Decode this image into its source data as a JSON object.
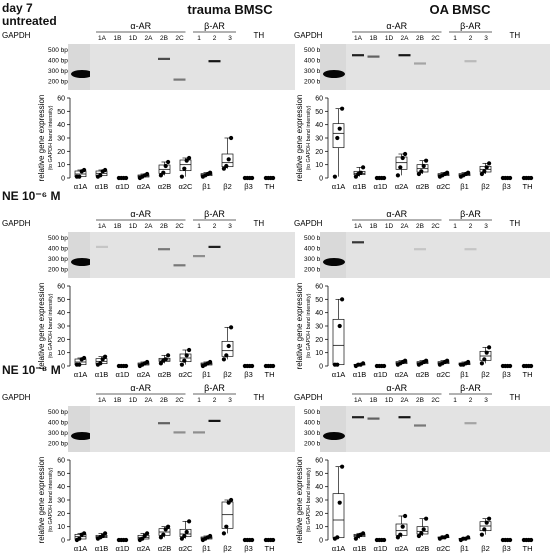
{
  "columns": [
    "trauma BMSC",
    "OA BMSC"
  ],
  "rows": [
    {
      "label": "day 7",
      "sublabel": "untreated"
    },
    {
      "label": "NE 10⁻⁶ M",
      "sublabel": ""
    },
    {
      "label": "NE 10⁻⁸ M",
      "sublabel": ""
    }
  ],
  "gel": {
    "gapdh_label": "GAPDH",
    "alpha_group": "α-AR",
    "beta_group": "β-AR",
    "th_label": "TH",
    "lane_labels": [
      "1A",
      "1B",
      "1D",
      "2A",
      "2B",
      "2C",
      "1",
      "2",
      "3"
    ],
    "ladder": [
      "500 bp-",
      "400 bp-",
      "300 bp-",
      "200 bp-"
    ]
  },
  "y_axis_label": "relative gene expression",
  "y_axis_sublabel": "(to GAPDH band intensity)",
  "chart_data": [
    {
      "type": "box",
      "panel": "trauma BMSC / day 7 untreated",
      "ylim": [
        0,
        60
      ],
      "yticks": [
        0,
        10,
        20,
        30,
        40,
        50,
        60
      ],
      "categories": [
        "α1A",
        "α1B",
        "α1D",
        "α2A",
        "α2B",
        "α2C",
        "β1",
        "β2",
        "β3",
        "TH"
      ],
      "points": [
        [
          1,
          1,
          5,
          6
        ],
        [
          1,
          2,
          5,
          6
        ],
        [
          0,
          0,
          0,
          0
        ],
        [
          0,
          1,
          2,
          3
        ],
        [
          2,
          4,
          9,
          12
        ],
        [
          1,
          7,
          13,
          15
        ],
        [
          1,
          2,
          3,
          4
        ],
        [
          7,
          9,
          14,
          30
        ],
        [
          0,
          0,
          0,
          0
        ],
        [
          0,
          0,
          0,
          0
        ]
      ]
    },
    {
      "type": "box",
      "panel": "OA BMSC / day 7 untreated",
      "ylim": [
        0,
        60
      ],
      "yticks": [
        0,
        10,
        20,
        30,
        40,
        50,
        60
      ],
      "categories": [
        "α1A",
        "α1B",
        "α1D",
        "α2A",
        "α2B",
        "α2C",
        "β1",
        "β2",
        "β3",
        "TH"
      ],
      "points": [
        [
          1,
          30,
          37,
          52
        ],
        [
          1,
          3,
          4,
          8
        ],
        [
          0,
          0,
          0,
          0
        ],
        [
          2,
          8,
          15,
          18
        ],
        [
          3,
          5,
          9,
          13
        ],
        [
          1,
          2,
          3,
          4
        ],
        [
          1,
          2,
          3,
          4
        ],
        [
          3,
          5,
          8,
          11
        ],
        [
          0,
          0,
          0,
          0
        ],
        [
          0,
          0,
          0,
          0
        ]
      ]
    },
    {
      "type": "box",
      "panel": "trauma BMSC / NE 10^-6 M",
      "ylim": [
        0,
        60
      ],
      "yticks": [
        0,
        10,
        20,
        30,
        40,
        50,
        60
      ],
      "categories": [
        "α1A",
        "α1B",
        "α1D",
        "α2A",
        "α2B",
        "α2C",
        "β1",
        "β2",
        "β3",
        "TH"
      ],
      "points": [
        [
          1,
          1,
          5,
          6
        ],
        [
          1,
          2,
          5,
          7
        ],
        [
          0,
          0,
          0,
          0
        ],
        [
          0,
          1,
          2,
          3
        ],
        [
          2,
          4,
          5,
          8
        ],
        [
          1,
          4,
          8,
          12
        ],
        [
          0,
          1,
          2,
          3
        ],
        [
          5,
          8,
          15,
          29
        ],
        [
          0,
          0,
          0,
          0
        ],
        [
          0,
          0,
          0,
          0
        ]
      ]
    },
    {
      "type": "box",
      "panel": "OA BMSC / NE 10^-6 M",
      "ylim": [
        0,
        60
      ],
      "yticks": [
        0,
        10,
        20,
        30,
        40,
        50,
        60
      ],
      "categories": [
        "α1A",
        "α1B",
        "α1D",
        "α2A",
        "α2B",
        "α2C",
        "β1",
        "β2",
        "β3",
        "TH"
      ],
      "points": [
        [
          1,
          1,
          30,
          50
        ],
        [
          0,
          1,
          1,
          2
        ],
        [
          0,
          0,
          0,
          0
        ],
        [
          1,
          2,
          3,
          4
        ],
        [
          1,
          2,
          3,
          4
        ],
        [
          1,
          2,
          3,
          4
        ],
        [
          1,
          1,
          2,
          3
        ],
        [
          2,
          5,
          10,
          14
        ],
        [
          0,
          0,
          0,
          0
        ],
        [
          0,
          0,
          0,
          0
        ]
      ]
    },
    {
      "type": "box",
      "panel": "trauma BMSC / NE 10^-8 M",
      "ylim": [
        0,
        60
      ],
      "yticks": [
        0,
        10,
        20,
        30,
        40,
        50,
        60
      ],
      "categories": [
        "α1A",
        "α1B",
        "α1D",
        "α2A",
        "α2B",
        "α2C",
        "β1",
        "β2",
        "β3",
        "TH"
      ],
      "points": [
        [
          0,
          1,
          4,
          5
        ],
        [
          1,
          2,
          3,
          5
        ],
        [
          0,
          0,
          0,
          0
        ],
        [
          0,
          1,
          3,
          5
        ],
        [
          2,
          4,
          8,
          10
        ],
        [
          1,
          3,
          6,
          14
        ],
        [
          0,
          1,
          2,
          3
        ],
        [
          5,
          10,
          28,
          30
        ],
        [
          0,
          0,
          0,
          0
        ],
        [
          0,
          0,
          0,
          0
        ]
      ]
    },
    {
      "type": "box",
      "panel": "OA BMSC / NE 10^-8 M",
      "ylim": [
        0,
        60
      ],
      "yticks": [
        0,
        10,
        20,
        30,
        40,
        50,
        60
      ],
      "categories": [
        "α1A",
        "α1B",
        "α1D",
        "α2A",
        "α2B",
        "α2C",
        "β1",
        "β2",
        "β3",
        "TH"
      ],
      "points": [
        [
          1,
          2,
          28,
          55
        ],
        [
          1,
          3,
          4,
          5
        ],
        [
          0,
          0,
          0,
          0
        ],
        [
          2,
          4,
          10,
          18
        ],
        [
          3,
          5,
          8,
          16
        ],
        [
          1,
          2,
          2,
          3
        ],
        [
          0,
          1,
          1,
          2
        ],
        [
          4,
          8,
          13,
          16
        ],
        [
          0,
          0,
          0,
          0
        ],
        [
          0,
          0,
          0,
          0
        ]
      ]
    }
  ]
}
